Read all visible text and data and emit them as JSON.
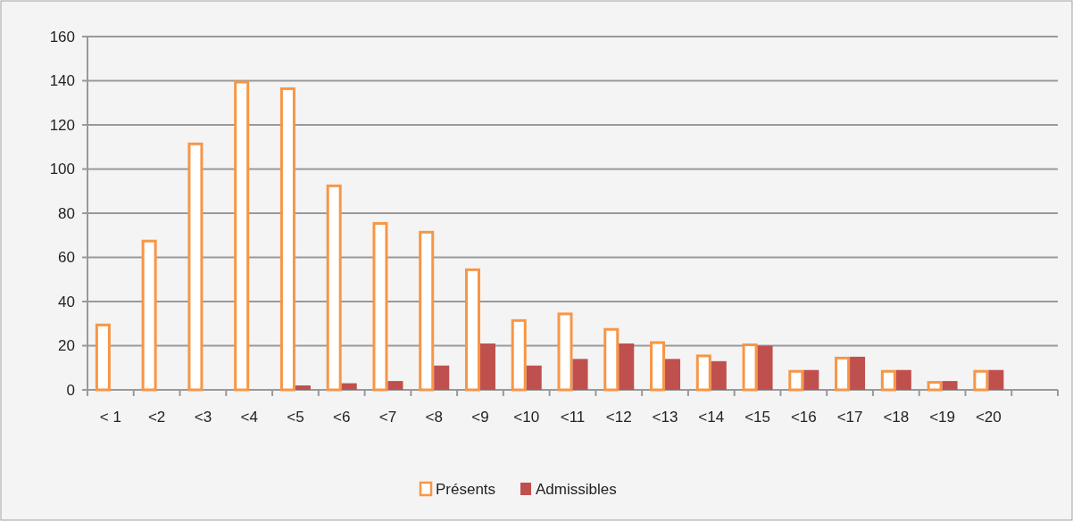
{
  "chart_data": {
    "type": "bar",
    "categories": [
      "< 1",
      "<2",
      "<3",
      "<4",
      "<5",
      "<6",
      "<7",
      "<8",
      "<9",
      "<10",
      "<11",
      "<12",
      "<13",
      "<14",
      "<15",
      "<16",
      "<17",
      "<18",
      "<19",
      "<20",
      null
    ],
    "series": [
      {
        "name": "Présents",
        "color": "#f79646",
        "values": [
          30,
          68,
          112,
          140,
          137,
          93,
          76,
          72,
          55,
          32,
          35,
          28,
          22,
          16,
          21,
          9,
          15,
          9,
          4,
          9,
          null
        ]
      },
      {
        "name": "Admissibles",
        "color": "#c0504d",
        "values": [
          null,
          null,
          null,
          null,
          2,
          3,
          4,
          11,
          21,
          11,
          14,
          21,
          14,
          13,
          20,
          9,
          15,
          9,
          4,
          9,
          null
        ]
      }
    ],
    "ylim": [
      0,
      160
    ],
    "yticks": [
      0,
      20,
      40,
      60,
      80,
      100,
      120,
      140,
      160
    ],
    "grid": "y",
    "legend": "bottom"
  }
}
